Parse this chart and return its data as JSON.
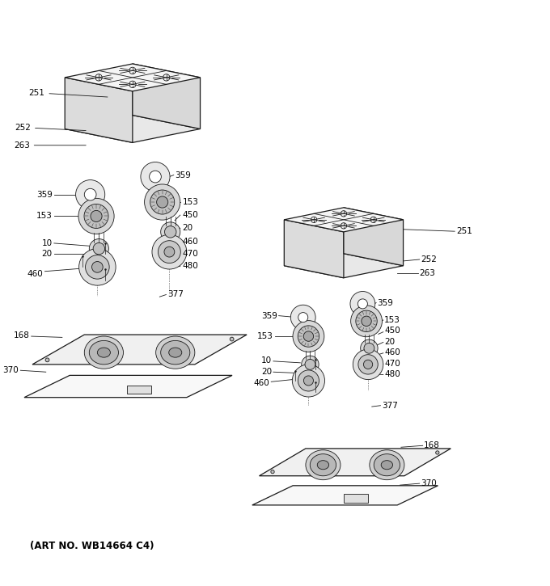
{
  "title": "",
  "footer": "(ART NO. WB14664 C4)",
  "bg_color": "#ffffff",
  "line_color": "#1a1a1a",
  "label_color": "#000000",
  "fig_width": 6.8,
  "fig_height": 7.25,
  "dpi": 100
}
